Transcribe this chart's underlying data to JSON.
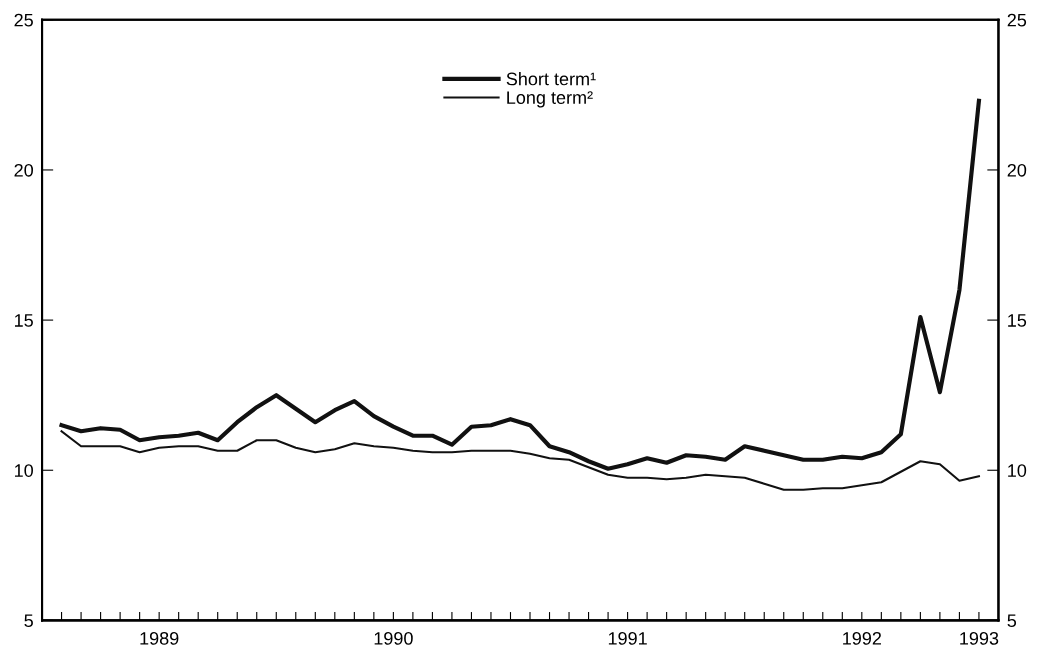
{
  "chart_data": {
    "type": "line",
    "categories": [
      null,
      null,
      null,
      null,
      null,
      "1989",
      null,
      null,
      null,
      null,
      null,
      null,
      null,
      null,
      null,
      null,
      null,
      "1990",
      null,
      null,
      null,
      null,
      null,
      null,
      null,
      null,
      null,
      null,
      null,
      "1991",
      null,
      null,
      null,
      null,
      null,
      null,
      null,
      null,
      null,
      null,
      null,
      "1992",
      null,
      null,
      null,
      null,
      null,
      "1993"
    ],
    "series": [
      {
        "name": "Short term¹",
        "color": "#111111",
        "values": [
          11.5,
          11.3,
          11.4,
          11.35,
          11.0,
          11.1,
          11.15,
          11.25,
          11.0,
          11.6,
          12.1,
          12.5,
          12.05,
          11.6,
          12.0,
          12.3,
          11.8,
          11.45,
          11.15,
          11.15,
          10.85,
          11.45,
          11.5,
          11.7,
          11.5,
          10.8,
          10.6,
          10.3,
          10.05,
          10.2,
          10.4,
          10.25,
          10.5,
          10.45,
          10.35,
          10.8,
          10.65,
          10.5,
          10.35,
          10.35,
          10.45,
          10.4,
          10.6,
          11.2,
          15.1,
          12.6,
          16.0,
          22.3
        ]
      },
      {
        "name": "Long term²",
        "color": "#111111",
        "values": [
          11.3,
          10.8,
          10.8,
          10.8,
          10.6,
          10.75,
          10.8,
          10.8,
          10.65,
          10.65,
          11.0,
          11.0,
          10.75,
          10.6,
          10.7,
          10.9,
          10.8,
          10.75,
          10.65,
          10.6,
          10.6,
          10.65,
          10.65,
          10.65,
          10.55,
          10.4,
          10.35,
          10.1,
          9.85,
          9.75,
          9.75,
          9.7,
          9.75,
          9.85,
          9.8,
          9.75,
          9.55,
          9.35,
          9.35,
          9.4,
          9.4,
          9.5,
          9.6,
          9.95,
          10.3,
          10.2,
          9.65,
          9.8
        ]
      }
    ],
    "ylim": [
      5,
      25
    ],
    "yticks": [
      5,
      10,
      15,
      20,
      25
    ],
    "y2lim": [
      5,
      25
    ],
    "y2ticks": [
      5,
      10,
      15,
      20,
      25
    ],
    "grid": false,
    "legend": "top",
    "marker": "none",
    "line_style": "solid"
  }
}
